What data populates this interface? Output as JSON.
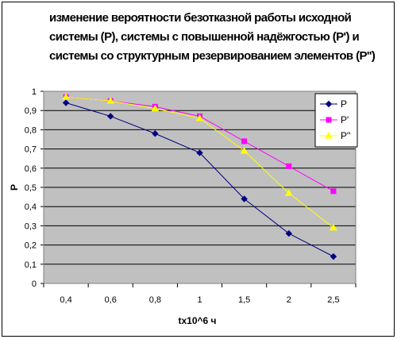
{
  "chart_data": {
    "type": "line",
    "title_lines": [
      "изменение вероятности безотказной работы исходной",
      "системы (P), системы с повышенной надёжгостью (P') и",
      "системы со структурным резервированием элементов (P'')"
    ],
    "xlabel": "tx10^6 ч",
    "ylabel": "P",
    "categories": [
      "0,4",
      "0,6",
      "0,8",
      "1",
      "1,5",
      "2",
      "2,5"
    ],
    "yticks": [
      "0",
      "0,1",
      "0,2",
      "0,3",
      "0,4",
      "0,5",
      "0,6",
      "0,7",
      "0,8",
      "0,9",
      "1"
    ],
    "ylim": [
      0,
      1
    ],
    "grid": true,
    "legend_position": "right",
    "plot_background": "#c0c0c0",
    "series": [
      {
        "name": "P",
        "color": "#000080",
        "marker": "diamond",
        "values": [
          0.94,
          0.87,
          0.78,
          0.68,
          0.44,
          0.26,
          0.14
        ]
      },
      {
        "name": "P'",
        "color": "#ff00ff",
        "marker": "square",
        "values": [
          0.97,
          0.95,
          0.92,
          0.87,
          0.74,
          0.61,
          0.48
        ]
      },
      {
        "name": "P''",
        "color": "#ffff00",
        "marker": "triangle",
        "values": [
          0.97,
          0.95,
          0.91,
          0.86,
          0.69,
          0.47,
          0.29
        ]
      }
    ]
  }
}
